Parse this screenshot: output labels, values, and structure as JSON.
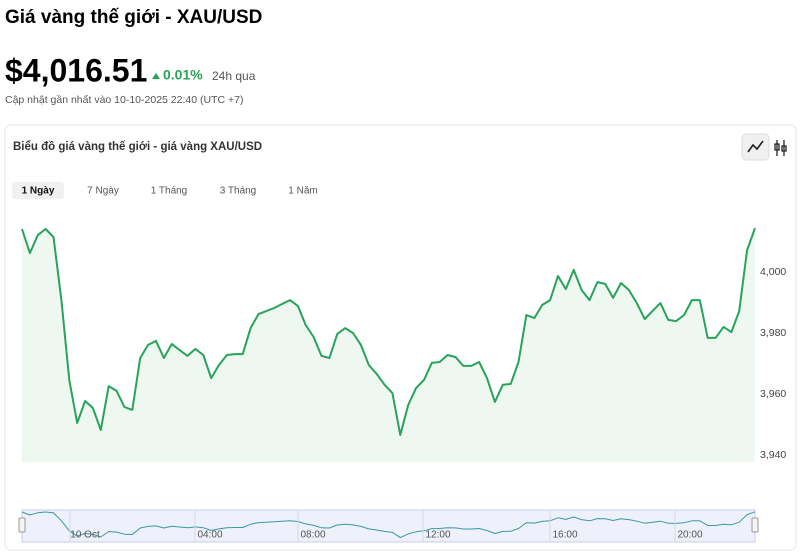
{
  "header": {
    "title": "Giá vàng thế giới - XAU/USD",
    "price": "$4,016.51",
    "change": "0.01%",
    "period": "24h qua",
    "updated": "Cập nhật gần nhất vào 10-10-2025 22:40 (UTC +7)"
  },
  "tabs": [
    "1 Ngày",
    "7 Ngày",
    "1 Tháng",
    "3 Tháng",
    "1 Năm"
  ],
  "chart_data": {
    "type": "area",
    "title": "Biểu đồ giá vàng thế giới - giá vàng XAU/USD",
    "color": "#27a35a",
    "values": [
      4014.1,
      4006.2,
      4012.1,
      4014.1,
      4011.5,
      3990.8,
      3964.6,
      3950.5,
      3957.7,
      3955.4,
      3948.2,
      3962.6,
      3961.0,
      3955.7,
      3954.8,
      3971.8,
      3976.1,
      3977.4,
      3971.8,
      3976.4,
      3974.4,
      3972.5,
      3974.8,
      3972.8,
      3965.2,
      3969.5,
      3972.8,
      3973.1,
      3973.1,
      3981.6,
      3986.2,
      3987.2,
      3988.2,
      3989.5,
      3990.8,
      3988.9,
      3982.6,
      3978.7,
      3972.5,
      3971.8,
      3979.7,
      3981.6,
      3980.0,
      3976.1,
      3969.5,
      3966.6,
      3963.0,
      3960.3,
      3946.6,
      3956.4,
      3962.0,
      3964.6,
      3970.2,
      3970.5,
      3972.8,
      3972.1,
      3969.2,
      3969.2,
      3970.5,
      3965.2,
      3957.4,
      3963.0,
      3963.3,
      3970.5,
      3985.9,
      3984.9,
      3989.2,
      3990.8,
      3998.7,
      3994.4,
      4000.7,
      3994.1,
      3990.8,
      3996.7,
      3996.1,
      3991.5,
      3996.4,
      3994.1,
      3989.8,
      3984.6,
      3987.2,
      3989.8,
      3984.3,
      3983.9,
      3985.9,
      3990.8,
      3990.8,
      3978.4,
      3978.4,
      3982.0,
      3980.3,
      3987.2,
      4007.2,
      4014.4
    ],
    "ylim": [
      3937.7,
      4016.6
    ],
    "yticks": [
      {
        "value": 3940,
        "label": "3,940"
      },
      {
        "value": 3960,
        "label": "3,960"
      },
      {
        "value": 3980,
        "label": "3,980"
      },
      {
        "value": 4000,
        "label": "4,000"
      }
    ],
    "navigator_labels": [
      "10 Oct",
      "04:00",
      "08:00",
      "12:00",
      "16:00",
      "20:00"
    ]
  }
}
